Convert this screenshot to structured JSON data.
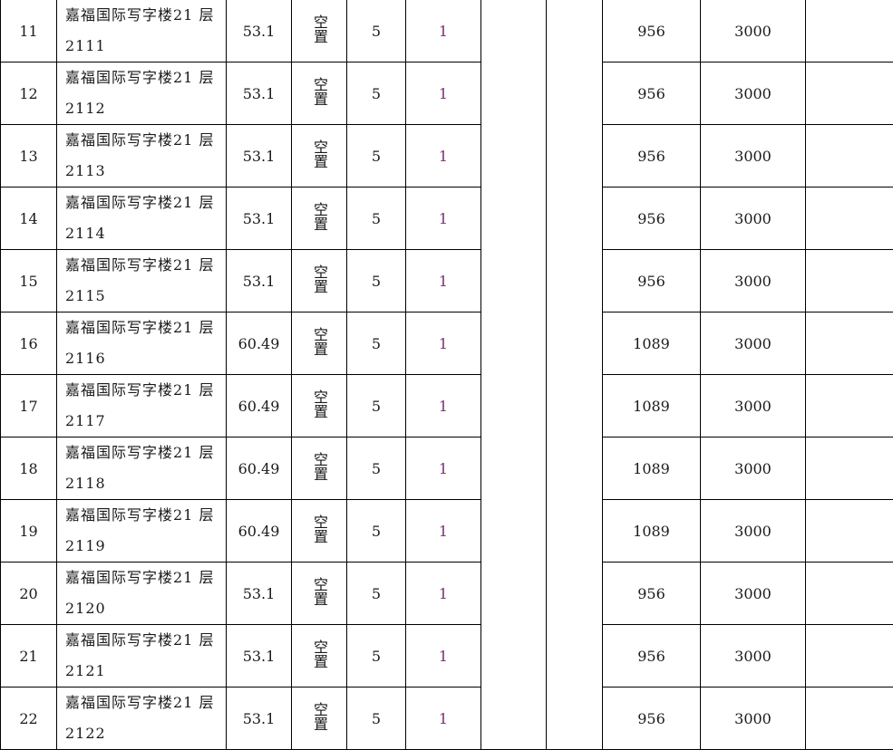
{
  "table": {
    "rows": [
      {
        "no": "11",
        "name_line1": "嘉福国际写字楼21 层",
        "name_line2": "2111",
        "area": "53.1",
        "status": "空置",
        "c5": "5",
        "c6": "1",
        "c9": "956",
        "c10": "3000",
        "c11": ""
      },
      {
        "no": "12",
        "name_line1": "嘉福国际写字楼21 层",
        "name_line2": "2112",
        "area": "53.1",
        "status": "空置",
        "c5": "5",
        "c6": "1",
        "c9": "956",
        "c10": "3000",
        "c11": ""
      },
      {
        "no": "13",
        "name_line1": "嘉福国际写字楼21 层",
        "name_line2": "2113",
        "area": "53.1",
        "status": "空置",
        "c5": "5",
        "c6": "1",
        "c9": "956",
        "c10": "3000",
        "c11": ""
      },
      {
        "no": "14",
        "name_line1": "嘉福国际写字楼21 层",
        "name_line2": "2114",
        "area": "53.1",
        "status": "空置",
        "c5": "5",
        "c6": "1",
        "c9": "956",
        "c10": "3000",
        "c11": ""
      },
      {
        "no": "15",
        "name_line1": "嘉福国际写字楼21 层",
        "name_line2": "2115",
        "area": "53.1",
        "status": "空置",
        "c5": "5",
        "c6": "1",
        "c9": "956",
        "c10": "3000",
        "c11": ""
      },
      {
        "no": "16",
        "name_line1": "嘉福国际写字楼21 层",
        "name_line2": "2116",
        "area": "60.49",
        "status": "空置",
        "c5": "5",
        "c6": "1",
        "c9": "1089",
        "c10": "3000",
        "c11": ""
      },
      {
        "no": "17",
        "name_line1": "嘉福国际写字楼21 层",
        "name_line2": "2117",
        "area": "60.49",
        "status": "空置",
        "c5": "5",
        "c6": "1",
        "c9": "1089",
        "c10": "3000",
        "c11": ""
      },
      {
        "no": "18",
        "name_line1": "嘉福国际写字楼21 层",
        "name_line2": "2118",
        "area": "60.49",
        "status": "空置",
        "c5": "5",
        "c6": "1",
        "c9": "1089",
        "c10": "3000",
        "c11": ""
      },
      {
        "no": "19",
        "name_line1": "嘉福国际写字楼21 层",
        "name_line2": "2119",
        "area": "60.49",
        "status": "空置",
        "c5": "5",
        "c6": "1",
        "c9": "1089",
        "c10": "3000",
        "c11": ""
      },
      {
        "no": "20",
        "name_line1": "嘉福国际写字楼21 层",
        "name_line2": "2120",
        "area": "53.1",
        "status": "空置",
        "c5": "5",
        "c6": "1",
        "c9": "956",
        "c10": "3000",
        "c11": ""
      },
      {
        "no": "21",
        "name_line1": "嘉福国际写字楼21 层",
        "name_line2": "2121",
        "area": "53.1",
        "status": "空置",
        "c5": "5",
        "c6": "1",
        "c9": "956",
        "c10": "3000",
        "c11": ""
      },
      {
        "no": "22",
        "name_line1": "嘉福国际写字楼21 层",
        "name_line2": "2122",
        "area": "53.1",
        "status": "空置",
        "c5": "5",
        "c6": "1",
        "c9": "956",
        "c10": "3000",
        "c11": ""
      }
    ]
  }
}
